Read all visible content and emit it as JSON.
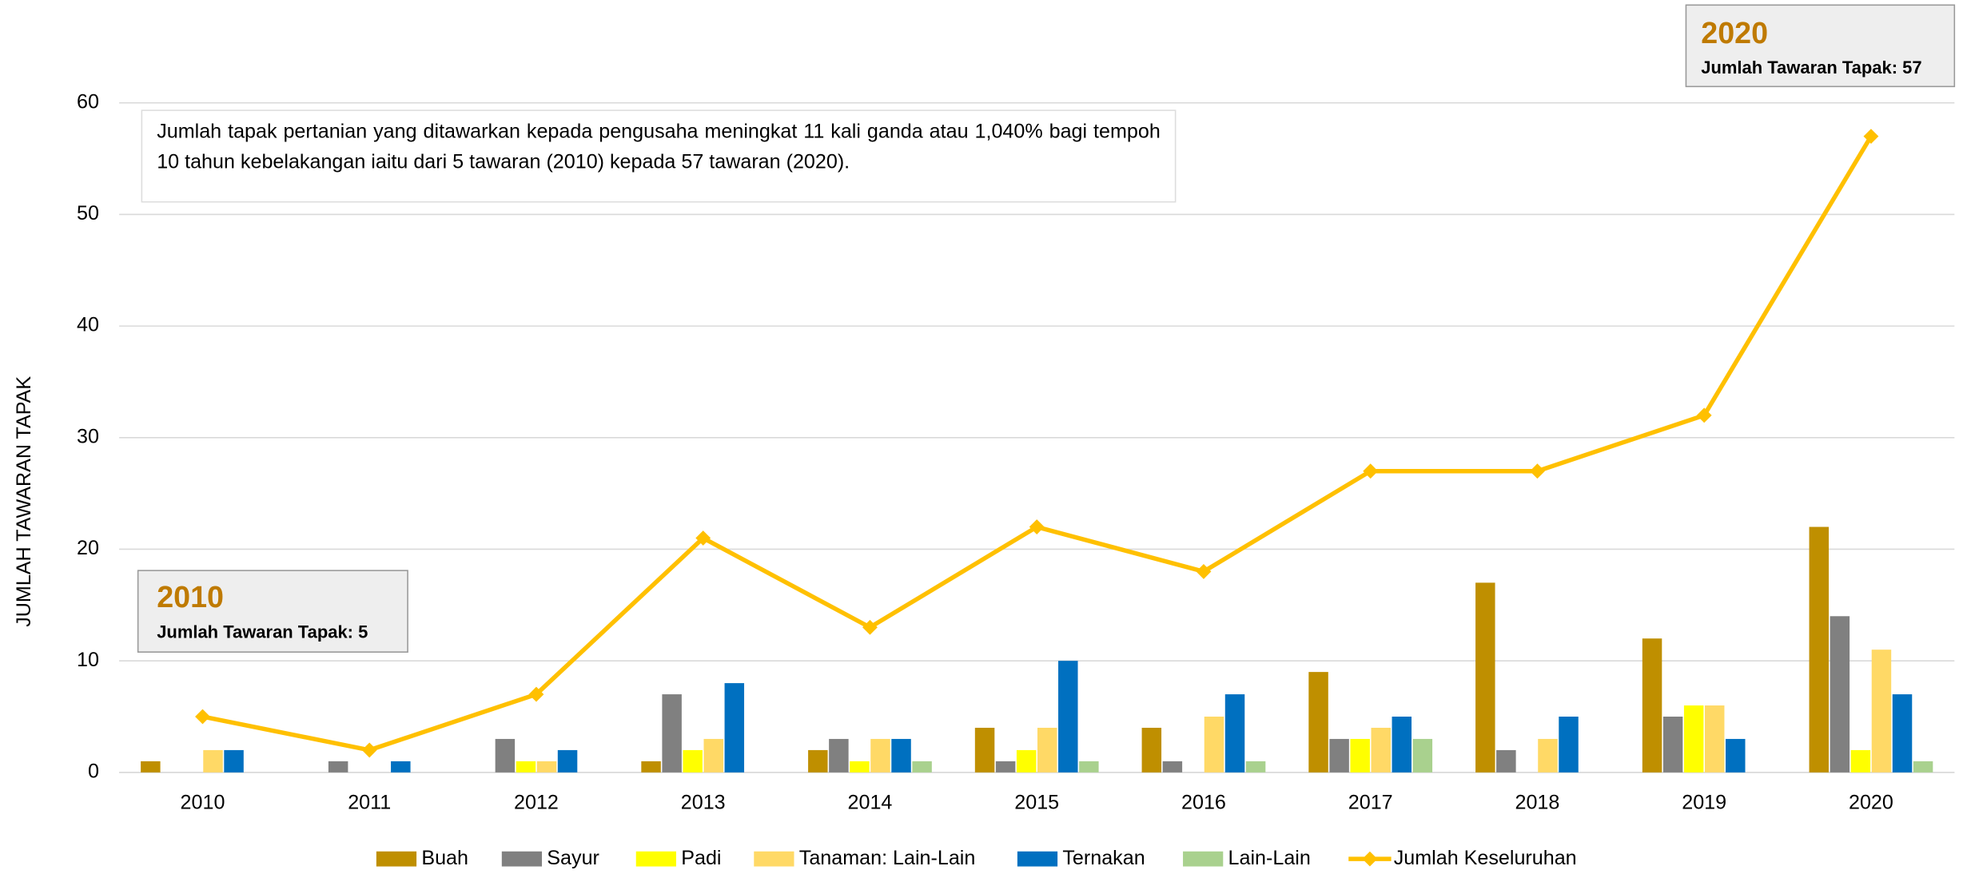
{
  "chart_data": {
    "type": "bar",
    "y_label": "JUMLAH TAWARAN TAPAK",
    "categories": [
      "2010",
      "2011",
      "2012",
      "2013",
      "2014",
      "2015",
      "2016",
      "2017",
      "2018",
      "2019",
      "2020"
    ],
    "series": [
      {
        "name": "Buah",
        "color": "#bf8f00",
        "values": [
          1,
          0,
          0,
          1,
          2,
          4,
          4,
          9,
          17,
          12,
          22
        ]
      },
      {
        "name": "Sayur",
        "color": "#808080",
        "values": [
          0,
          1,
          3,
          7,
          3,
          1,
          1,
          3,
          2,
          5,
          14
        ]
      },
      {
        "name": "Padi",
        "color": "#ffff00",
        "values": [
          0,
          0,
          1,
          2,
          1,
          2,
          0,
          3,
          0,
          6,
          2
        ]
      },
      {
        "name": "Tanaman: Lain-Lain",
        "color": "#ffd966",
        "values": [
          2,
          0,
          1,
          3,
          3,
          4,
          5,
          4,
          3,
          6,
          11
        ]
      },
      {
        "name": "Ternakan",
        "color": "#0070c0",
        "values": [
          2,
          1,
          2,
          8,
          3,
          10,
          7,
          5,
          5,
          3,
          7
        ]
      },
      {
        "name": "Lain-Lain",
        "color": "#a9d18e",
        "values": [
          0,
          0,
          0,
          0,
          1,
          1,
          1,
          3,
          0,
          0,
          1
        ]
      },
      {
        "name": "Jumlah Keseluruhan",
        "color": "#ffc000",
        "type": "line",
        "values": [
          5,
          2,
          7,
          21,
          13,
          22,
          18,
          27,
          27,
          32,
          57
        ]
      }
    ],
    "ylim": [
      0,
      60
    ],
    "yticks": [
      0,
      10,
      20,
      30,
      40,
      50,
      60
    ],
    "grid": true,
    "legend": "bottom",
    "note": "Jumlah tapak pertanian yang ditawarkan kepada pengusaha meningkat 11 kali ganda atau 1,040% bagi tempoh 10 tahun kebelakangan iaitu dari 5 tawaran (2010) kepada 57 tawaran (2020).",
    "callouts": [
      {
        "year": "2010",
        "text": "Jumlah Tawaran Tapak: 5"
      },
      {
        "year": "2020",
        "text": "Jumlah Tawaran Tapak: 57"
      }
    ]
  }
}
